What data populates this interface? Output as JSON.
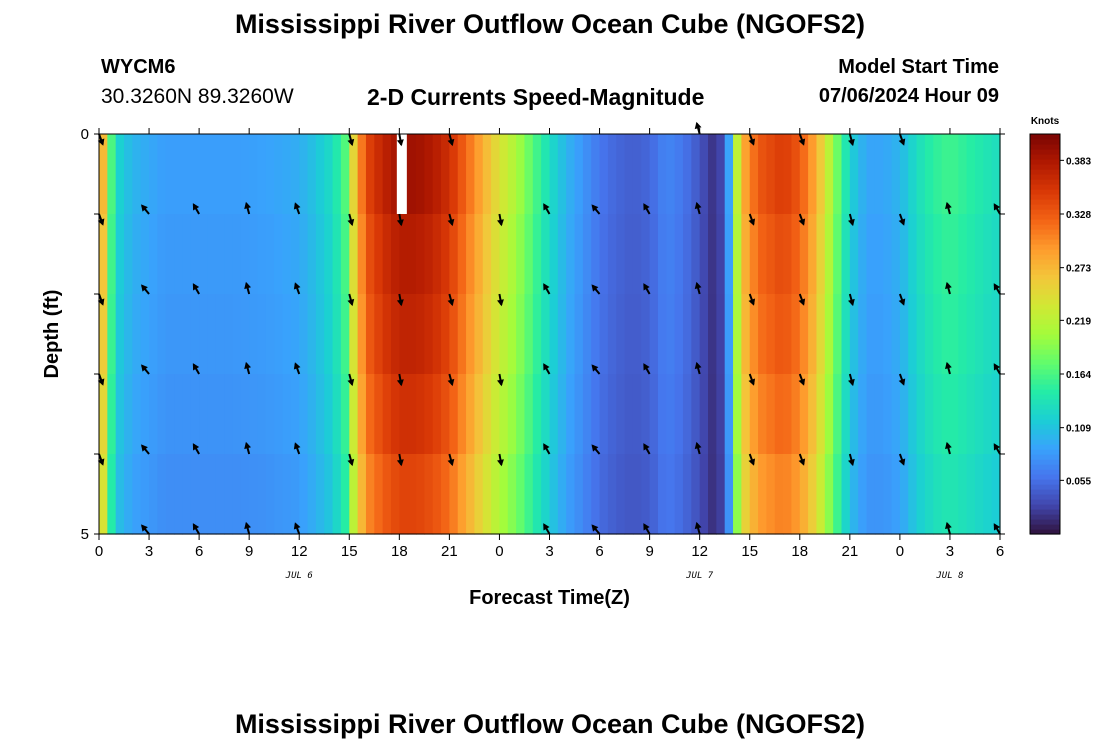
{
  "header": {
    "title": "Mississippi River Outflow Ocean Cube (NGOFS2)",
    "station": "WYCM6",
    "coordinates": "30.3260N  89.3260W",
    "subtitle": "2-D Currents Speed-Magnitude",
    "start_label": "Model Start Time",
    "start_value": "07/06/2024 Hour 09"
  },
  "footer": {
    "title": "Mississippi River Outflow Ocean Cube (NGOFS2)"
  },
  "colors": {
    "scale": [
      "#30123b",
      "#4145ab",
      "#4675ed",
      "#39a2fc",
      "#1bcfd4",
      "#24eca6",
      "#61fc6c",
      "#a4fc3b",
      "#d1e834",
      "#f3c63a",
      "#fe9b2d",
      "#f36315",
      "#d93806",
      "#b11901",
      "#7a0403"
    ]
  },
  "chart_data": {
    "type": "heatmap",
    "title": "2-D Currents Speed-Magnitude",
    "xlabel": "Forecast Time(Z)",
    "ylabel": "Depth (ft)",
    "colorbar_label": "Knots",
    "colorbar_ticks": [
      "0.383",
      "0.328",
      "0.273",
      "0.219",
      "0.164",
      "0.109",
      "0.055"
    ],
    "colorbar_range": [
      0.0,
      0.41
    ],
    "x_tick_labels": [
      "0",
      "3",
      "6",
      "9",
      "12",
      "15",
      "18",
      "21",
      "0",
      "3",
      "6",
      "9",
      "12",
      "15",
      "18",
      "21",
      "0",
      "3",
      "6"
    ],
    "x_range_hours": [
      0,
      54
    ],
    "date_labels": [
      {
        "label": "JUL 6",
        "hour": 12
      },
      {
        "label": "JUL 7",
        "hour": 36
      },
      {
        "label": "JUL 8",
        "hour": 51
      }
    ],
    "y_tick_labels": [
      "0",
      "5"
    ],
    "y_range_ft": [
      0,
      5
    ],
    "depth_levels": 5,
    "speed_profile_knots": [
      [
        0,
        0.28
      ],
      [
        0.3,
        0.27
      ],
      [
        0.7,
        0.17
      ],
      [
        1.2,
        0.12
      ],
      [
        2,
        0.1
      ],
      [
        4,
        0.085
      ],
      [
        6,
        0.085
      ],
      [
        8,
        0.085
      ],
      [
        10,
        0.088
      ],
      [
        12,
        0.095
      ],
      [
        13,
        0.11
      ],
      [
        14,
        0.13
      ],
      [
        14.8,
        0.17
      ],
      [
        15.3,
        0.26
      ],
      [
        16,
        0.34
      ],
      [
        17,
        0.37
      ],
      [
        18,
        0.39
      ],
      [
        19,
        0.39
      ],
      [
        20,
        0.38
      ],
      [
        21,
        0.36
      ],
      [
        22,
        0.32
      ],
      [
        23,
        0.28
      ],
      [
        24,
        0.24
      ],
      [
        25,
        0.21
      ],
      [
        26,
        0.17
      ],
      [
        27,
        0.13
      ],
      [
        28,
        0.1
      ],
      [
        29,
        0.08
      ],
      [
        30,
        0.06
      ],
      [
        31,
        0.05
      ],
      [
        32,
        0.045
      ],
      [
        33,
        0.05
      ],
      [
        34,
        0.07
      ],
      [
        35,
        0.06
      ],
      [
        36,
        0.04
      ],
      [
        36.7,
        0.02
      ],
      [
        37.3,
        0.03
      ],
      [
        37.7,
        0.07
      ],
      [
        38,
        0.18
      ],
      [
        38.6,
        0.28
      ],
      [
        39.5,
        0.33
      ],
      [
        41,
        0.35
      ],
      [
        42,
        0.33
      ],
      [
        43,
        0.28
      ],
      [
        44,
        0.2
      ],
      [
        45,
        0.12
      ],
      [
        46,
        0.09
      ],
      [
        47,
        0.09
      ],
      [
        48,
        0.1
      ],
      [
        49,
        0.13
      ],
      [
        50,
        0.15
      ],
      [
        51,
        0.16
      ],
      [
        52,
        0.15
      ],
      [
        53,
        0.14
      ],
      [
        54,
        0.13
      ]
    ],
    "layer_factors": [
      1.0,
      0.97,
      0.95,
      0.92,
      0.88
    ],
    "missing_cell": {
      "hour": 18,
      "layer": 0
    },
    "vector_rows": [
      {
        "depth_ft": 0,
        "hours": [
          0,
          15,
          18,
          21,
          36,
          39,
          42,
          45,
          48
        ]
      },
      {
        "depth_ft": 1,
        "hours": [
          0,
          3,
          6,
          9,
          12,
          15,
          18,
          21,
          24,
          27,
          30,
          33,
          36,
          39,
          42,
          45,
          48,
          51,
          54
        ]
      },
      {
        "depth_ft": 2,
        "hours": [
          0,
          3,
          6,
          9,
          12,
          15,
          18,
          21,
          24,
          27,
          30,
          33,
          36,
          39,
          42,
          45,
          48,
          51,
          54
        ]
      },
      {
        "depth_ft": 3,
        "hours": [
          0,
          3,
          6,
          9,
          12,
          15,
          18,
          21,
          24,
          27,
          30,
          33,
          36,
          39,
          42,
          45,
          48,
          51,
          54
        ]
      },
      {
        "depth_ft": 4,
        "hours": [
          0,
          3,
          6,
          9,
          12,
          15,
          18,
          21,
          24,
          27,
          30,
          33,
          36,
          39,
          42,
          45,
          48,
          51,
          54
        ]
      },
      {
        "depth_ft": 5,
        "hours": [
          3,
          6,
          9,
          12,
          27,
          30,
          33,
          36,
          51,
          54
        ]
      }
    ],
    "vector_direction_deg": [
      [
        0,
        160
      ],
      [
        3,
        320
      ],
      [
        6,
        330
      ],
      [
        9,
        345
      ],
      [
        12,
        340
      ],
      [
        15,
        165
      ],
      [
        18,
        170
      ],
      [
        21,
        165
      ],
      [
        24,
        170
      ],
      [
        27,
        330
      ],
      [
        30,
        320
      ],
      [
        33,
        330
      ],
      [
        36,
        345
      ],
      [
        39,
        160
      ],
      [
        42,
        160
      ],
      [
        45,
        165
      ],
      [
        48,
        160
      ],
      [
        51,
        345
      ],
      [
        54,
        330
      ]
    ]
  }
}
